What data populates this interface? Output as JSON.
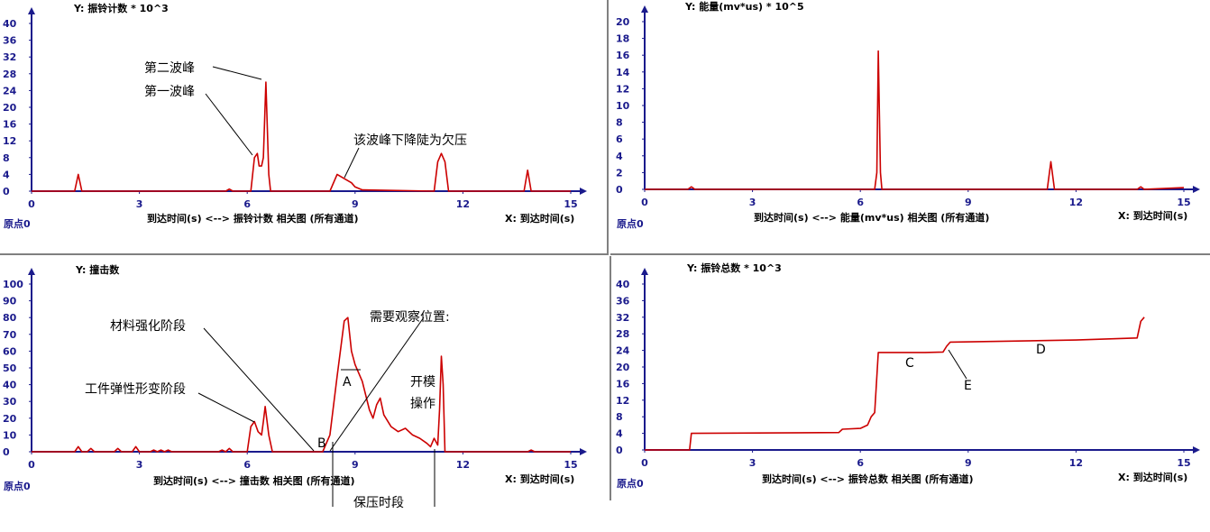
{
  "origin_label": "原点0",
  "colors": {
    "series": "#cc0000",
    "axis": "#1a1a8c",
    "border": "#808080"
  },
  "chart_data": [
    {
      "type": "line",
      "ylabel": "Y: 振铃计数 * 10^3",
      "xlabel": "到达时间(s) <--> 振铃计数  相关图 (所有通道)",
      "xaxis_label": "X: 到达时间(s)",
      "xlim": [
        0,
        15
      ],
      "ylim": [
        0,
        40
      ],
      "xticks": [
        0,
        3,
        6,
        9,
        12,
        15
      ],
      "yticks": [
        0,
        4,
        8,
        12,
        16,
        20,
        24,
        28,
        32,
        36,
        40
      ],
      "series": [
        {
          "values": [
            [
              0,
              0
            ],
            [
              1.2,
              0
            ],
            [
              1.3,
              4
            ],
            [
              1.4,
              0
            ],
            [
              5.4,
              0
            ],
            [
              5.5,
              0.5
            ],
            [
              5.6,
              0
            ],
            [
              6.1,
              0
            ],
            [
              6.2,
              8
            ],
            [
              6.28,
              9
            ],
            [
              6.33,
              6
            ],
            [
              6.4,
              6
            ],
            [
              6.45,
              8
            ],
            [
              6.52,
              26
            ],
            [
              6.6,
              4
            ],
            [
              6.65,
              0
            ],
            [
              8.3,
              0
            ],
            [
              8.5,
              4
            ],
            [
              8.7,
              3
            ],
            [
              8.9,
              2
            ],
            [
              9.0,
              1
            ],
            [
              9.2,
              0.3
            ],
            [
              11.2,
              0
            ],
            [
              11.3,
              7
            ],
            [
              11.4,
              9
            ],
            [
              11.5,
              7
            ],
            [
              11.6,
              0
            ],
            [
              13.7,
              0
            ],
            [
              13.8,
              5
            ],
            [
              13.9,
              0
            ],
            [
              15,
              0
            ]
          ]
        }
      ]
    },
    {
      "type": "line",
      "ylabel": "Y: 能量(mv*us) * 10^5",
      "xlabel": "到达时间(s) <--> 能量(mv*us)  相关图 (所有通道)",
      "xaxis_label": "X: 到达时间(s)",
      "xlim": [
        0,
        15
      ],
      "ylim": [
        0,
        20
      ],
      "xticks": [
        0,
        3,
        6,
        9,
        12,
        15
      ],
      "yticks": [
        0,
        2,
        4,
        6,
        8,
        10,
        12,
        14,
        16,
        18,
        20
      ],
      "series": [
        {
          "values": [
            [
              0,
              0
            ],
            [
              1.2,
              0
            ],
            [
              1.3,
              0.3
            ],
            [
              1.4,
              0
            ],
            [
              6.4,
              0
            ],
            [
              6.46,
              2
            ],
            [
              6.5,
              16.5
            ],
            [
              6.56,
              2
            ],
            [
              6.6,
              0
            ],
            [
              11.2,
              0
            ],
            [
              11.3,
              3.3
            ],
            [
              11.4,
              0
            ],
            [
              13.7,
              0
            ],
            [
              13.8,
              0.3
            ],
            [
              13.9,
              0
            ],
            [
              15,
              0.2
            ]
          ]
        }
      ]
    },
    {
      "type": "line",
      "ylabel": "Y: 撞击数",
      "xlabel": "到达时间(s) <--> 撞击数  相关图 (所有通道)",
      "xaxis_label": "X: 到达时间(s)",
      "xlim": [
        0,
        15
      ],
      "ylim": [
        0,
        100
      ],
      "xticks": [
        0,
        3,
        6,
        9,
        12,
        15
      ],
      "yticks": [
        0,
        10,
        20,
        30,
        40,
        50,
        60,
        70,
        80,
        90,
        100
      ],
      "series": [
        {
          "values": [
            [
              0,
              0
            ],
            [
              1.2,
              0
            ],
            [
              1.3,
              3
            ],
            [
              1.4,
              0
            ],
            [
              1.55,
              0
            ],
            [
              1.65,
              2
            ],
            [
              1.75,
              0
            ],
            [
              2.3,
              0
            ],
            [
              2.4,
              2
            ],
            [
              2.5,
              0
            ],
            [
              2.8,
              0
            ],
            [
              2.9,
              3
            ],
            [
              3.0,
              0
            ],
            [
              3.3,
              0
            ],
            [
              3.4,
              1
            ],
            [
              3.5,
              0
            ],
            [
              3.6,
              1
            ],
            [
              3.7,
              0
            ],
            [
              3.8,
              1
            ],
            [
              3.9,
              0
            ],
            [
              5.2,
              0
            ],
            [
              5.3,
              1
            ],
            [
              5.4,
              0
            ],
            [
              5.5,
              2
            ],
            [
              5.6,
              0
            ],
            [
              6.0,
              0
            ],
            [
              6.1,
              15
            ],
            [
              6.2,
              18
            ],
            [
              6.3,
              12
            ],
            [
              6.4,
              10
            ],
            [
              6.45,
              18
            ],
            [
              6.5,
              27
            ],
            [
              6.6,
              10
            ],
            [
              6.7,
              0
            ],
            [
              8.1,
              0
            ],
            [
              8.3,
              10
            ],
            [
              8.5,
              45
            ],
            [
              8.7,
              78
            ],
            [
              8.8,
              80
            ],
            [
              8.9,
              60
            ],
            [
              9.0,
              52
            ],
            [
              9.2,
              42
            ],
            [
              9.4,
              25
            ],
            [
              9.5,
              20
            ],
            [
              9.6,
              28
            ],
            [
              9.7,
              32
            ],
            [
              9.8,
              22
            ],
            [
              10.0,
              15
            ],
            [
              10.2,
              12
            ],
            [
              10.4,
              14
            ],
            [
              10.6,
              10
            ],
            [
              10.8,
              8
            ],
            [
              11.0,
              5
            ],
            [
              11.1,
              3
            ],
            [
              11.2,
              8
            ],
            [
              11.3,
              4
            ],
            [
              11.35,
              25
            ],
            [
              11.4,
              57
            ],
            [
              11.45,
              40
            ],
            [
              11.5,
              0
            ],
            [
              13.8,
              0
            ],
            [
              13.9,
              1
            ],
            [
              14.0,
              0
            ],
            [
              15,
              0
            ]
          ]
        }
      ]
    },
    {
      "type": "line",
      "ylabel": "Y: 振铃总数 * 10^3",
      "xlabel": "到达时间(s) <--> 振铃总数  相关图 (所有通道)",
      "xaxis_label": "X: 到达时间(s)",
      "xlim": [
        0,
        15
      ],
      "ylim": [
        0,
        40
      ],
      "xticks": [
        0,
        3,
        6,
        9,
        12,
        15
      ],
      "yticks": [
        0,
        4,
        8,
        12,
        16,
        20,
        24,
        28,
        32,
        36,
        40
      ],
      "series": [
        {
          "values": [
            [
              0,
              0
            ],
            [
              1.25,
              0
            ],
            [
              1.3,
              4
            ],
            [
              5.4,
              4.2
            ],
            [
              5.5,
              5
            ],
            [
              6.0,
              5.2
            ],
            [
              6.2,
              6
            ],
            [
              6.3,
              8
            ],
            [
              6.4,
              9
            ],
            [
              6.5,
              23.5
            ],
            [
              7.8,
              23.5
            ],
            [
              8.3,
              23.6
            ],
            [
              8.4,
              25
            ],
            [
              8.5,
              26
            ],
            [
              12,
              26.5
            ],
            [
              13.7,
              27
            ],
            [
              13.8,
              31
            ],
            [
              13.9,
              32
            ]
          ]
        }
      ]
    }
  ],
  "annotations": {
    "panel1": {
      "second_peak": "第二波峰",
      "first_peak": "第一波峰",
      "drop_note": "该波峰下降陡为欠压"
    },
    "panel3": {
      "material": "材料强化阶段",
      "elastic": "工件弹性形变阶段",
      "observe": "需要观察位置:",
      "A": "A",
      "B": "B",
      "open_mold_1": "开模",
      "open_mold_2": "操作",
      "hold": "保压时段"
    },
    "panel4": {
      "C": "C",
      "D": "D",
      "E": "E"
    }
  }
}
